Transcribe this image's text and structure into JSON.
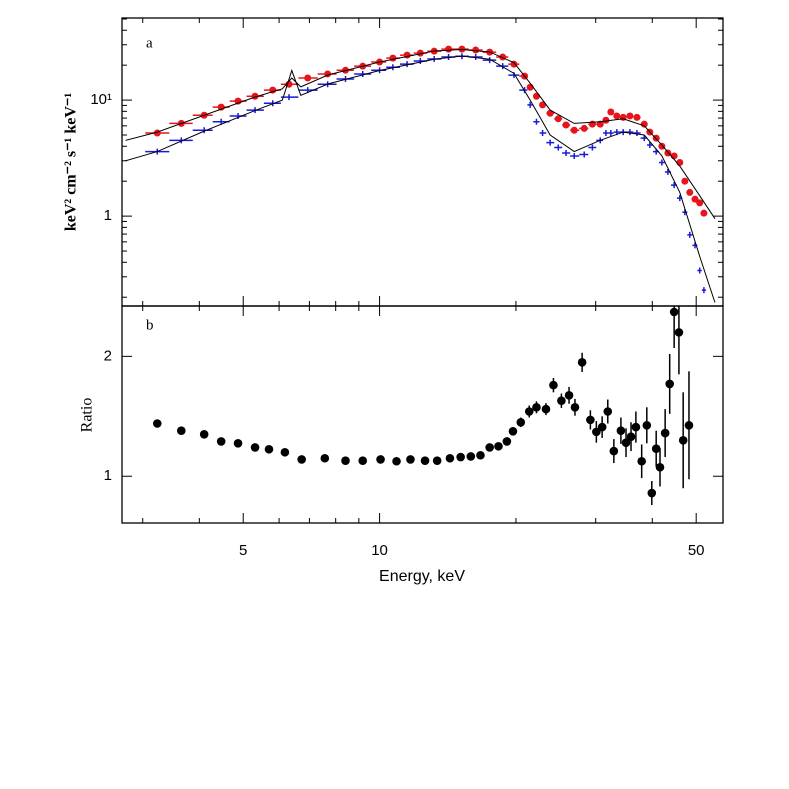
{
  "chart_data": [
    {
      "type": "scatter",
      "annotation": "a",
      "ylabel": "keV² cm⁻² s⁻¹ keV⁻¹",
      "xlog": true,
      "ylog": true,
      "xlim": [
        2.7,
        57.3
      ],
      "ylim": [
        0.168,
        51
      ],
      "xticks": [
        5,
        10,
        50
      ],
      "xticks_minor": [
        3,
        4,
        6,
        7,
        8,
        9,
        20,
        30,
        40
      ],
      "yticks": [
        {
          "value": 10,
          "label": "10¹"
        },
        1
      ],
      "yticks_minor": [
        0.2,
        0.3,
        0.4,
        0.5,
        0.6,
        0.7,
        0.8,
        0.9,
        2,
        3,
        4,
        5,
        6,
        7,
        8,
        9,
        20,
        30,
        40,
        50
      ],
      "x": [
        3.23,
        3.65,
        4.1,
        4.47,
        4.87,
        5.31,
        5.81,
        6.31,
        6.94,
        7.68,
        8.41,
        9.18,
        10.0,
        10.7,
        11.5,
        12.3,
        13.2,
        14.2,
        15.2,
        16.3,
        17.5,
        18.7,
        19.8,
        20.9,
        21.5,
        22.2,
        22.9,
        23.8,
        24.8,
        25.8,
        26.9,
        28.3,
        29.5,
        30.7,
        31.6,
        32.4,
        33.4,
        34.5,
        35.7,
        37.0,
        38.4,
        39.5,
        40.8,
        42.0,
        43.3,
        44.7,
        46.0,
        47.2,
        48.4,
        49.7,
        50.9,
        52.0
      ],
      "series": [
        {
          "color": "#e8141b",
          "marker": "circle",
          "values": [
            5.2,
            6.3,
            7.4,
            8.7,
            9.8,
            10.8,
            12.2,
            13.7,
            15.5,
            16.8,
            18.1,
            19.6,
            21.3,
            23.0,
            24.4,
            25.4,
            26.4,
            27.5,
            27.5,
            27.0,
            25.9,
            23.5,
            20.4,
            16.1,
            12.9,
            10.8,
            9.1,
            7.7,
            6.9,
            6.1,
            5.5,
            5.7,
            6.2,
            6.2,
            6.7,
            7.9,
            7.3,
            7.1,
            7.3,
            7.1,
            6.2,
            5.3,
            4.7,
            4.0,
            3.5,
            3.3,
            2.9,
            2.0,
            1.6,
            1.4,
            1.3,
            1.06
          ]
        },
        {
          "color": "#1a1adc",
          "marker": "plus",
          "values": [
            3.6,
            4.5,
            5.5,
            6.5,
            7.3,
            8.2,
            9.4,
            10.6,
            12.2,
            13.7,
            15.2,
            16.8,
            18.1,
            19.2,
            20.4,
            21.7,
            22.6,
            23.5,
            23.9,
            23.5,
            22.1,
            19.6,
            16.4,
            12.2,
            9.1,
            6.5,
            5.2,
            4.3,
            3.9,
            3.5,
            3.3,
            3.4,
            3.9,
            4.5,
            5.2,
            5.2,
            5.3,
            5.3,
            5.3,
            5.2,
            4.7,
            4.1,
            3.6,
            2.9,
            2.4,
            1.85,
            1.43,
            1.08,
            0.69,
            0.56,
            0.34,
            0.23
          ]
        },
        {
          "color": "#000000",
          "marker": "line",
          "x": [
            2.75,
            3.23,
            4.1,
            5.3,
            6.1,
            6.4,
            6.7,
            7.7,
            10,
            13.2,
            15.2,
            17.5,
            19.8,
            21.5,
            23.8,
            26.9,
            30.7,
            34.5,
            38.4,
            42,
            46,
            50.9,
            55
          ],
          "values": [
            4.5,
            5.3,
            7.4,
            10.6,
            12.5,
            15.5,
            13.0,
            16.5,
            21.3,
            26.5,
            27.3,
            26,
            21,
            14,
            8.2,
            6.3,
            6.5,
            6.9,
            6.0,
            4.1,
            2.7,
            1.5,
            0.95
          ]
        },
        {
          "color": "#000000",
          "marker": "line",
          "x": [
            2.75,
            3.23,
            4.1,
            5.3,
            6.1,
            6.4,
            6.7,
            7.7,
            10,
            13.2,
            15.2,
            17.5,
            19.8,
            21.5,
            23.8,
            26.9,
            30.7,
            34.5,
            38.4,
            42,
            46,
            50.9,
            55
          ],
          "values": [
            3.0,
            3.6,
            5.4,
            8.1,
            10.0,
            18,
            11,
            13.8,
            18.0,
            22.5,
            24,
            22.5,
            17,
            10,
            5.0,
            3.6,
            4.5,
            5.3,
            5.0,
            3.3,
            1.6,
            0.45,
            0.18
          ]
        }
      ]
    },
    {
      "type": "errorbar",
      "annotation": "b",
      "ylabel": "Ratio",
      "xlabel": "Energy, keV",
      "xlog": true,
      "xlim": [
        2.7,
        57.3
      ],
      "ylim": [
        0.61,
        2.42
      ],
      "xticks": [
        5,
        10,
        50
      ],
      "xticks_minor": [
        3,
        4,
        6,
        7,
        8,
        9,
        20,
        30,
        40
      ],
      "yticks": [
        1,
        2
      ],
      "x": [
        3.23,
        3.65,
        4.1,
        4.47,
        4.87,
        5.31,
        5.7,
        6.18,
        6.73,
        7.57,
        8.41,
        9.18,
        10.05,
        10.9,
        11.7,
        12.6,
        13.4,
        14.3,
        15.1,
        15.9,
        16.7,
        17.5,
        18.3,
        19.1,
        19.7,
        20.5,
        21.4,
        22.2,
        23.3,
        24.2,
        25.2,
        26.2,
        27.0,
        28.0,
        29.2,
        30.1,
        31.0,
        31.9,
        32.9,
        34.1,
        35.0,
        35.9,
        36.8,
        37.9,
        38.9,
        39.9,
        40.8,
        41.6,
        42.7,
        43.7,
        44.7,
        45.8,
        46.8,
        48.2
      ],
      "color": "#000000",
      "values": [
        1.44,
        1.38,
        1.35,
        1.29,
        1.275,
        1.24,
        1.225,
        1.2,
        1.14,
        1.15,
        1.13,
        1.13,
        1.14,
        1.125,
        1.14,
        1.13,
        1.13,
        1.15,
        1.16,
        1.165,
        1.175,
        1.24,
        1.25,
        1.29,
        1.375,
        1.45,
        1.54,
        1.575,
        1.56,
        1.76,
        1.63,
        1.675,
        1.575,
        1.95,
        1.47,
        1.37,
        1.41,
        1.54,
        1.21,
        1.38,
        1.28,
        1.33,
        1.41,
        1.125,
        1.425,
        0.86,
        1.23,
        1.075,
        1.36,
        1.77,
        2.37,
        2.2,
        1.3,
        1.425
      ],
      "errors": [
        0.02,
        0.02,
        0.02,
        0.02,
        0.02,
        0.02,
        0.02,
        0.02,
        0.02,
        0.02,
        0.02,
        0.02,
        0.02,
        0.02,
        0.02,
        0.02,
        0.02,
        0.02,
        0.02,
        0.02,
        0.02,
        0.02,
        0.02,
        0.03,
        0.03,
        0.04,
        0.05,
        0.05,
        0.05,
        0.06,
        0.06,
        0.07,
        0.07,
        0.08,
        0.08,
        0.09,
        0.09,
        0.1,
        0.1,
        0.11,
        0.12,
        0.12,
        0.13,
        0.14,
        0.15,
        0.1,
        0.15,
        0.16,
        0.2,
        0.25,
        0.3,
        0.35,
        0.4,
        0.45
      ]
    }
  ]
}
